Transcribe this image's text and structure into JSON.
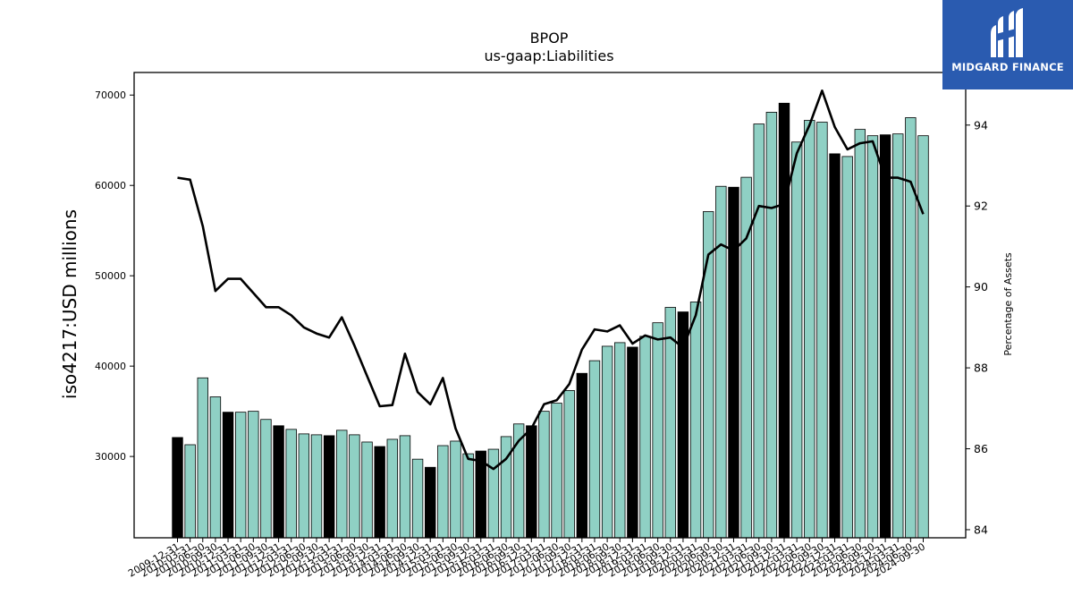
{
  "chart_data": {
    "type": "bar",
    "title": "BPOP",
    "subtitle": "us-gaap:Liabilities",
    "ylabel": "iso4217:USD  millions",
    "y2label": "Percentage of Assets",
    "ylim": [
      21000,
      72500
    ],
    "y2lim": [
      83.8,
      95.3
    ],
    "yticks": [
      30000,
      40000,
      50000,
      60000,
      70000
    ],
    "y2ticks": [
      84,
      86,
      88,
      90,
      92,
      94
    ],
    "grid": false,
    "colors": {
      "bar": "#8fd0c4",
      "bar_annual": "#000000",
      "line": "#000000"
    },
    "categories": [
      "2009-12-31",
      "2010-03-31",
      "2010-06-30",
      "2010-09-30",
      "2010-12-31",
      "2011-03-31",
      "2011-06-30",
      "2011-09-30",
      "2011-12-31",
      "2012-03-31",
      "2012-06-30",
      "2012-09-30",
      "2012-12-31",
      "2013-03-31",
      "2013-06-30",
      "2013-09-30",
      "2013-12-31",
      "2014-03-31",
      "2014-06-30",
      "2014-09-30",
      "2014-12-31",
      "2015-03-31",
      "2015-06-30",
      "2015-09-30",
      "2015-12-31",
      "2016-03-31",
      "2016-06-30",
      "2016-09-30",
      "2016-12-31",
      "2017-03-31",
      "2017-06-30",
      "2017-09-30",
      "2017-12-31",
      "2018-03-31",
      "2018-06-30",
      "2018-09-30",
      "2018-12-31",
      "2019-03-31",
      "2019-06-30",
      "2019-09-30",
      "2019-12-31",
      "2020-03-31",
      "2020-06-30",
      "2020-09-30",
      "2020-12-31",
      "2021-03-31",
      "2021-06-30",
      "2021-09-30",
      "2021-12-31",
      "2022-03-31",
      "2022-06-30",
      "2022-09-30",
      "2022-12-31",
      "2023-03-31",
      "2023-06-30",
      "2023-09-30",
      "2023-12-31",
      "2024-03-31",
      "2024-06-30",
      "2024-09-30"
    ],
    "series": [
      {
        "name": "Liabilities",
        "values": [
          32100,
          31300,
          38700,
          36600,
          34900,
          34900,
          35000,
          34100,
          33400,
          33000,
          32500,
          32400,
          32300,
          32900,
          32400,
          31600,
          31100,
          31900,
          32300,
          29700,
          28800,
          31200,
          31700,
          30300,
          30600,
          30800,
          32200,
          33600,
          33400,
          35000,
          35900,
          37300,
          39200,
          40600,
          42200,
          42600,
          42100,
          43300,
          44800,
          46500,
          46000,
          47100,
          57100,
          59900,
          59800,
          60900,
          66800,
          68100,
          69100,
          64800,
          67200,
          67000,
          63500,
          63200,
          66200,
          65500,
          65600,
          65700,
          67500,
          65500
        ]
      },
      {
        "name": "Percentage of Assets",
        "values": [
          92.7,
          92.65,
          91.5,
          89.9,
          90.2,
          90.2,
          89.85,
          89.5,
          89.5,
          89.3,
          89.0,
          88.85,
          88.75,
          89.25,
          88.55,
          87.8,
          87.05,
          87.08,
          88.35,
          87.4,
          87.1,
          87.75,
          86.5,
          85.75,
          85.7,
          85.5,
          85.75,
          86.2,
          86.5,
          87.1,
          87.2,
          87.6,
          88.45,
          88.95,
          88.9,
          89.05,
          88.6,
          88.8,
          88.7,
          88.75,
          88.5,
          89.3,
          90.8,
          91.05,
          90.9,
          91.2,
          92.0,
          91.95,
          92.05,
          93.3,
          94.0,
          94.85,
          93.95,
          93.4,
          93.55,
          93.6,
          92.7,
          92.7,
          92.6,
          91.8
        ]
      }
    ],
    "annual_flags": [
      1,
      0,
      0,
      0,
      1,
      0,
      0,
      0,
      1,
      0,
      0,
      0,
      1,
      0,
      0,
      0,
      1,
      0,
      0,
      0,
      1,
      0,
      0,
      0,
      1,
      0,
      0,
      0,
      1,
      0,
      0,
      0,
      1,
      0,
      0,
      0,
      1,
      0,
      0,
      0,
      1,
      0,
      0,
      0,
      1,
      0,
      0,
      0,
      1,
      0,
      0,
      0,
      1,
      0,
      0,
      0,
      1,
      0,
      0,
      0
    ]
  },
  "logo": {
    "text": "MIDGARD FINANCE"
  }
}
